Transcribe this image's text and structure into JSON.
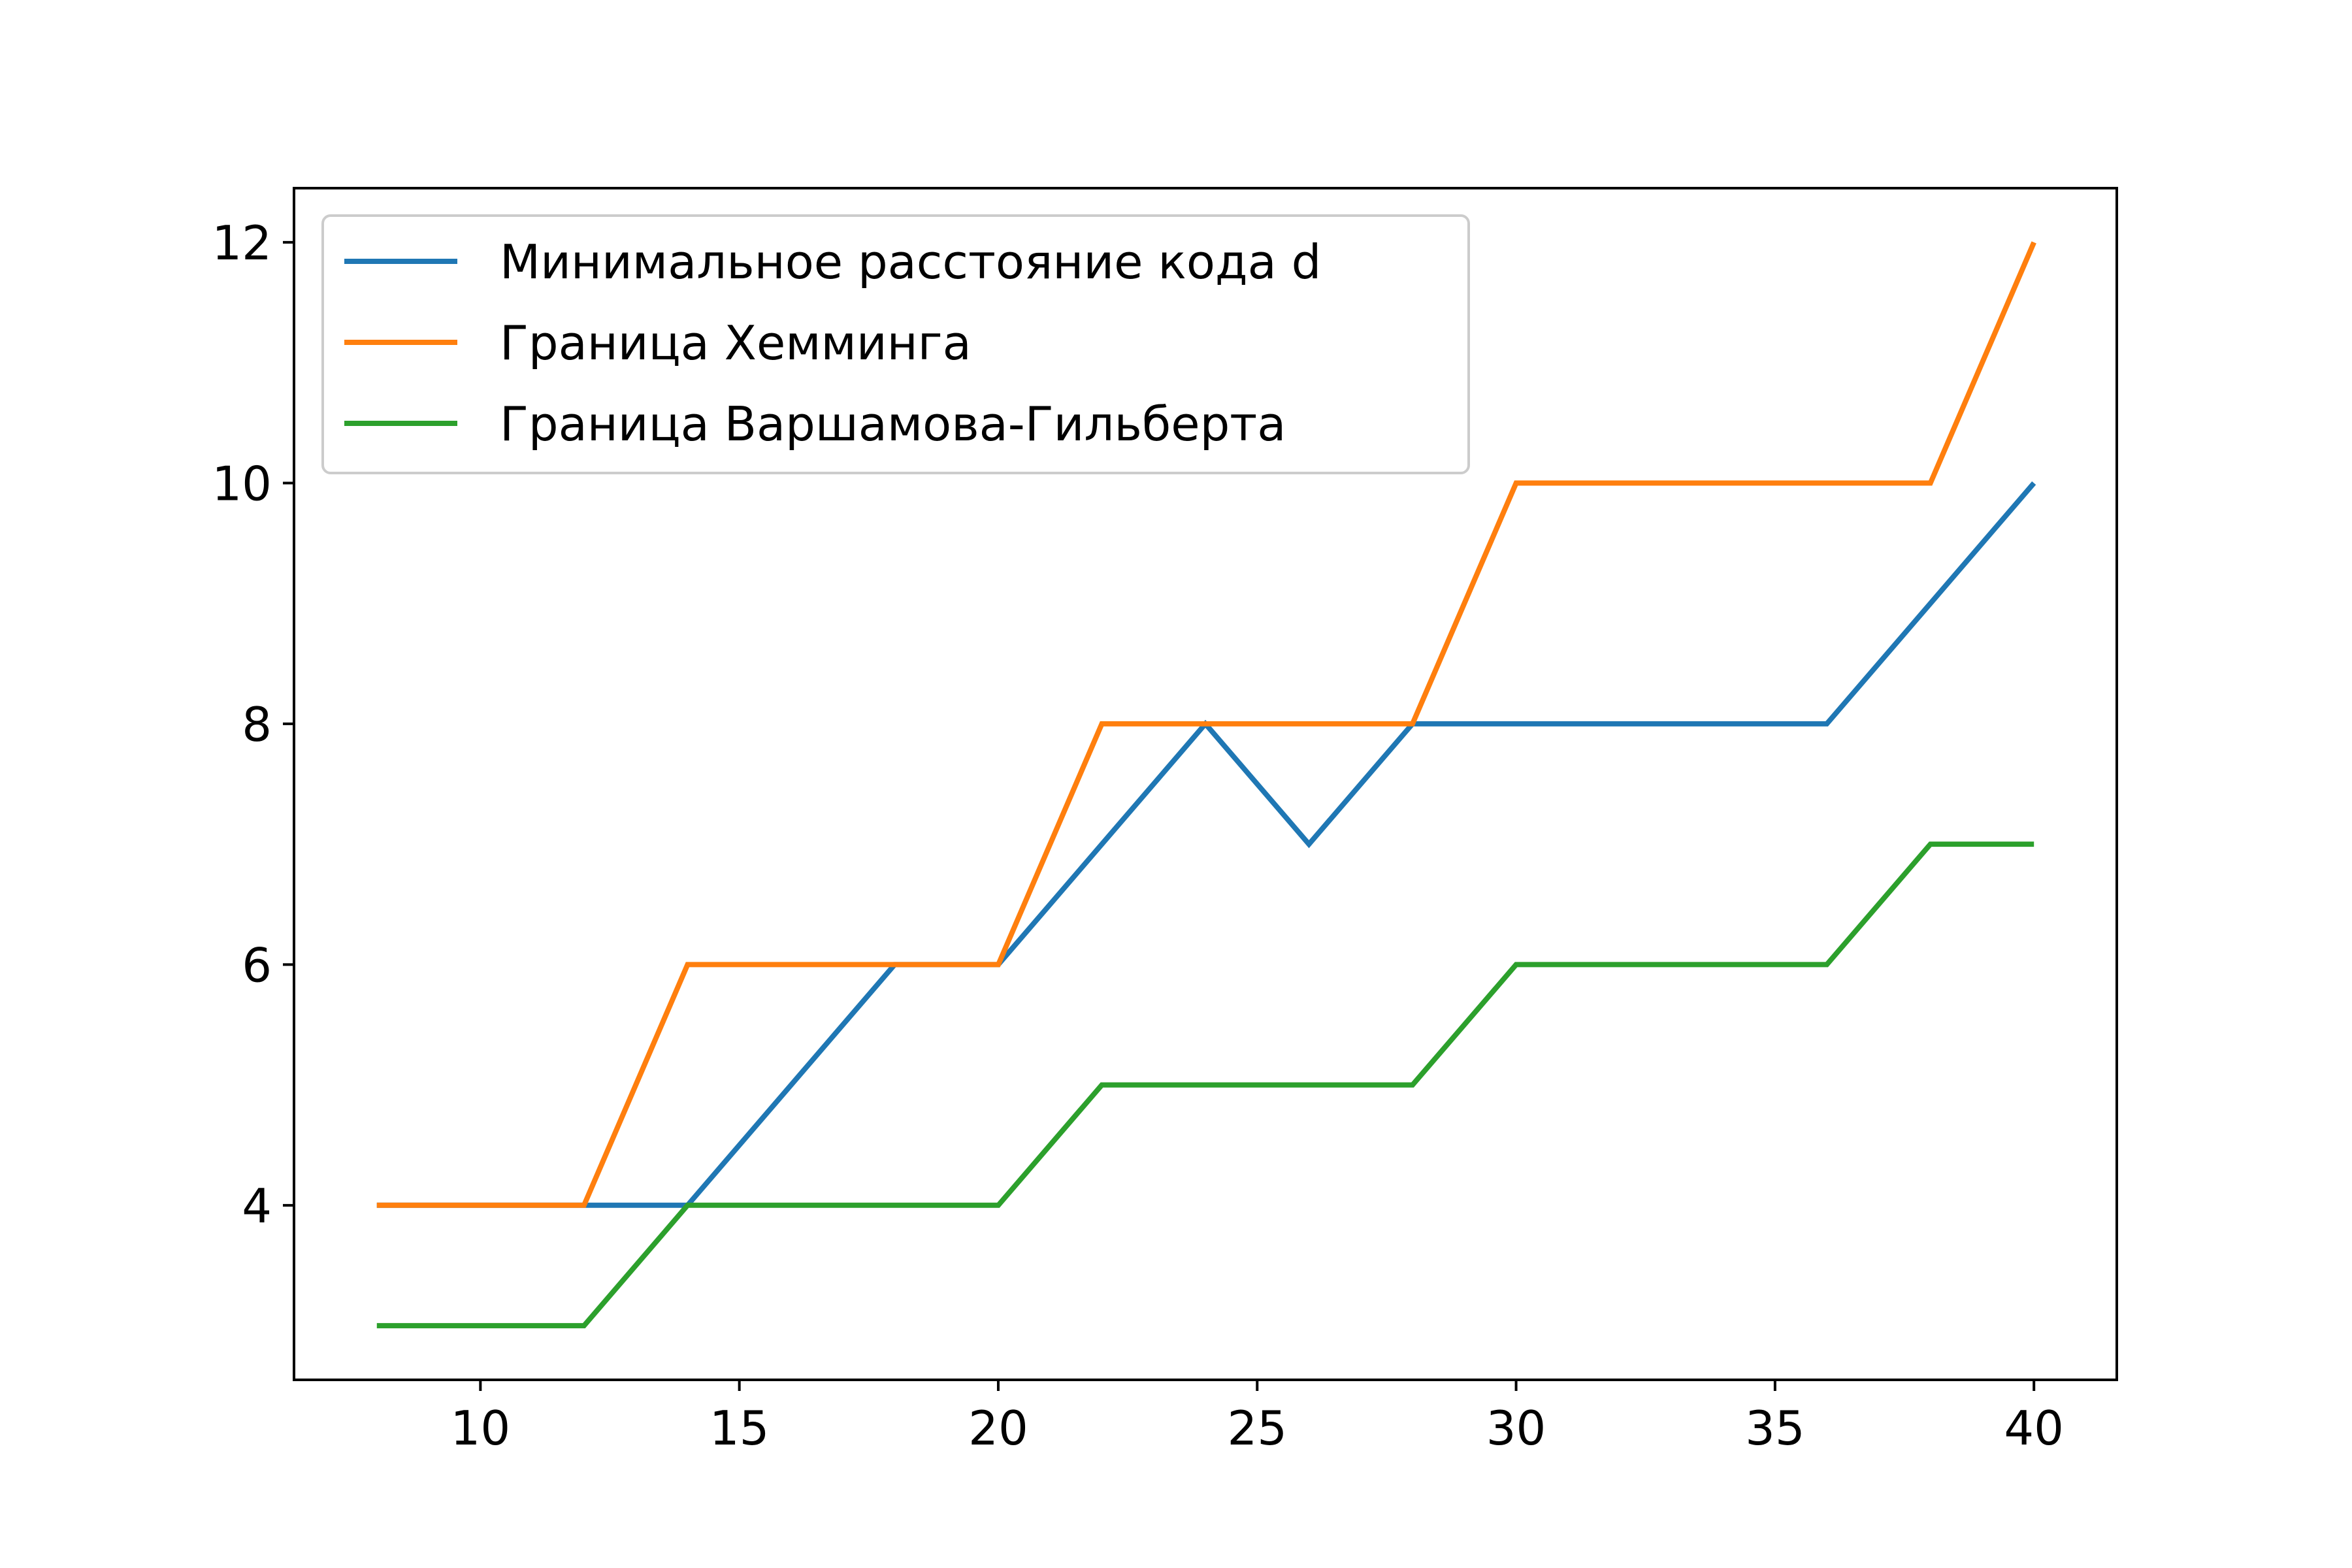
{
  "chart_data": {
    "type": "line",
    "x": [
      8,
      10,
      12,
      14,
      16,
      18,
      20,
      22,
      24,
      26,
      28,
      30,
      32,
      34,
      36,
      38,
      40
    ],
    "series": [
      {
        "name": "Минимальное расстояние кода d",
        "color": "#1f77b4",
        "values": [
          4,
          4,
          4,
          4,
          5,
          6,
          6,
          7,
          8,
          7,
          8,
          8,
          8,
          8,
          8,
          9,
          10
        ]
      },
      {
        "name": "Граница Хемминга",
        "color": "#ff7f0e",
        "values": [
          4,
          4,
          4,
          6,
          6,
          6,
          6,
          8,
          8,
          8,
          8,
          10,
          10,
          10,
          10,
          10,
          12
        ]
      },
      {
        "name": "Граница Варшамова-Гильберта",
        "color": "#2ca02c",
        "values": [
          3,
          3,
          3,
          4,
          4,
          4,
          4,
          5,
          5,
          5,
          5,
          6,
          6,
          6,
          6,
          7,
          7
        ]
      }
    ],
    "xlim": [
      6.4,
      41.6
    ],
    "ylim": [
      2.55,
      12.45
    ],
    "xticks": [
      10,
      15,
      20,
      25,
      30,
      35,
      40
    ],
    "yticks": [
      4,
      6,
      8,
      10,
      12
    ],
    "grid": false,
    "legend_position": "upper-left"
  }
}
